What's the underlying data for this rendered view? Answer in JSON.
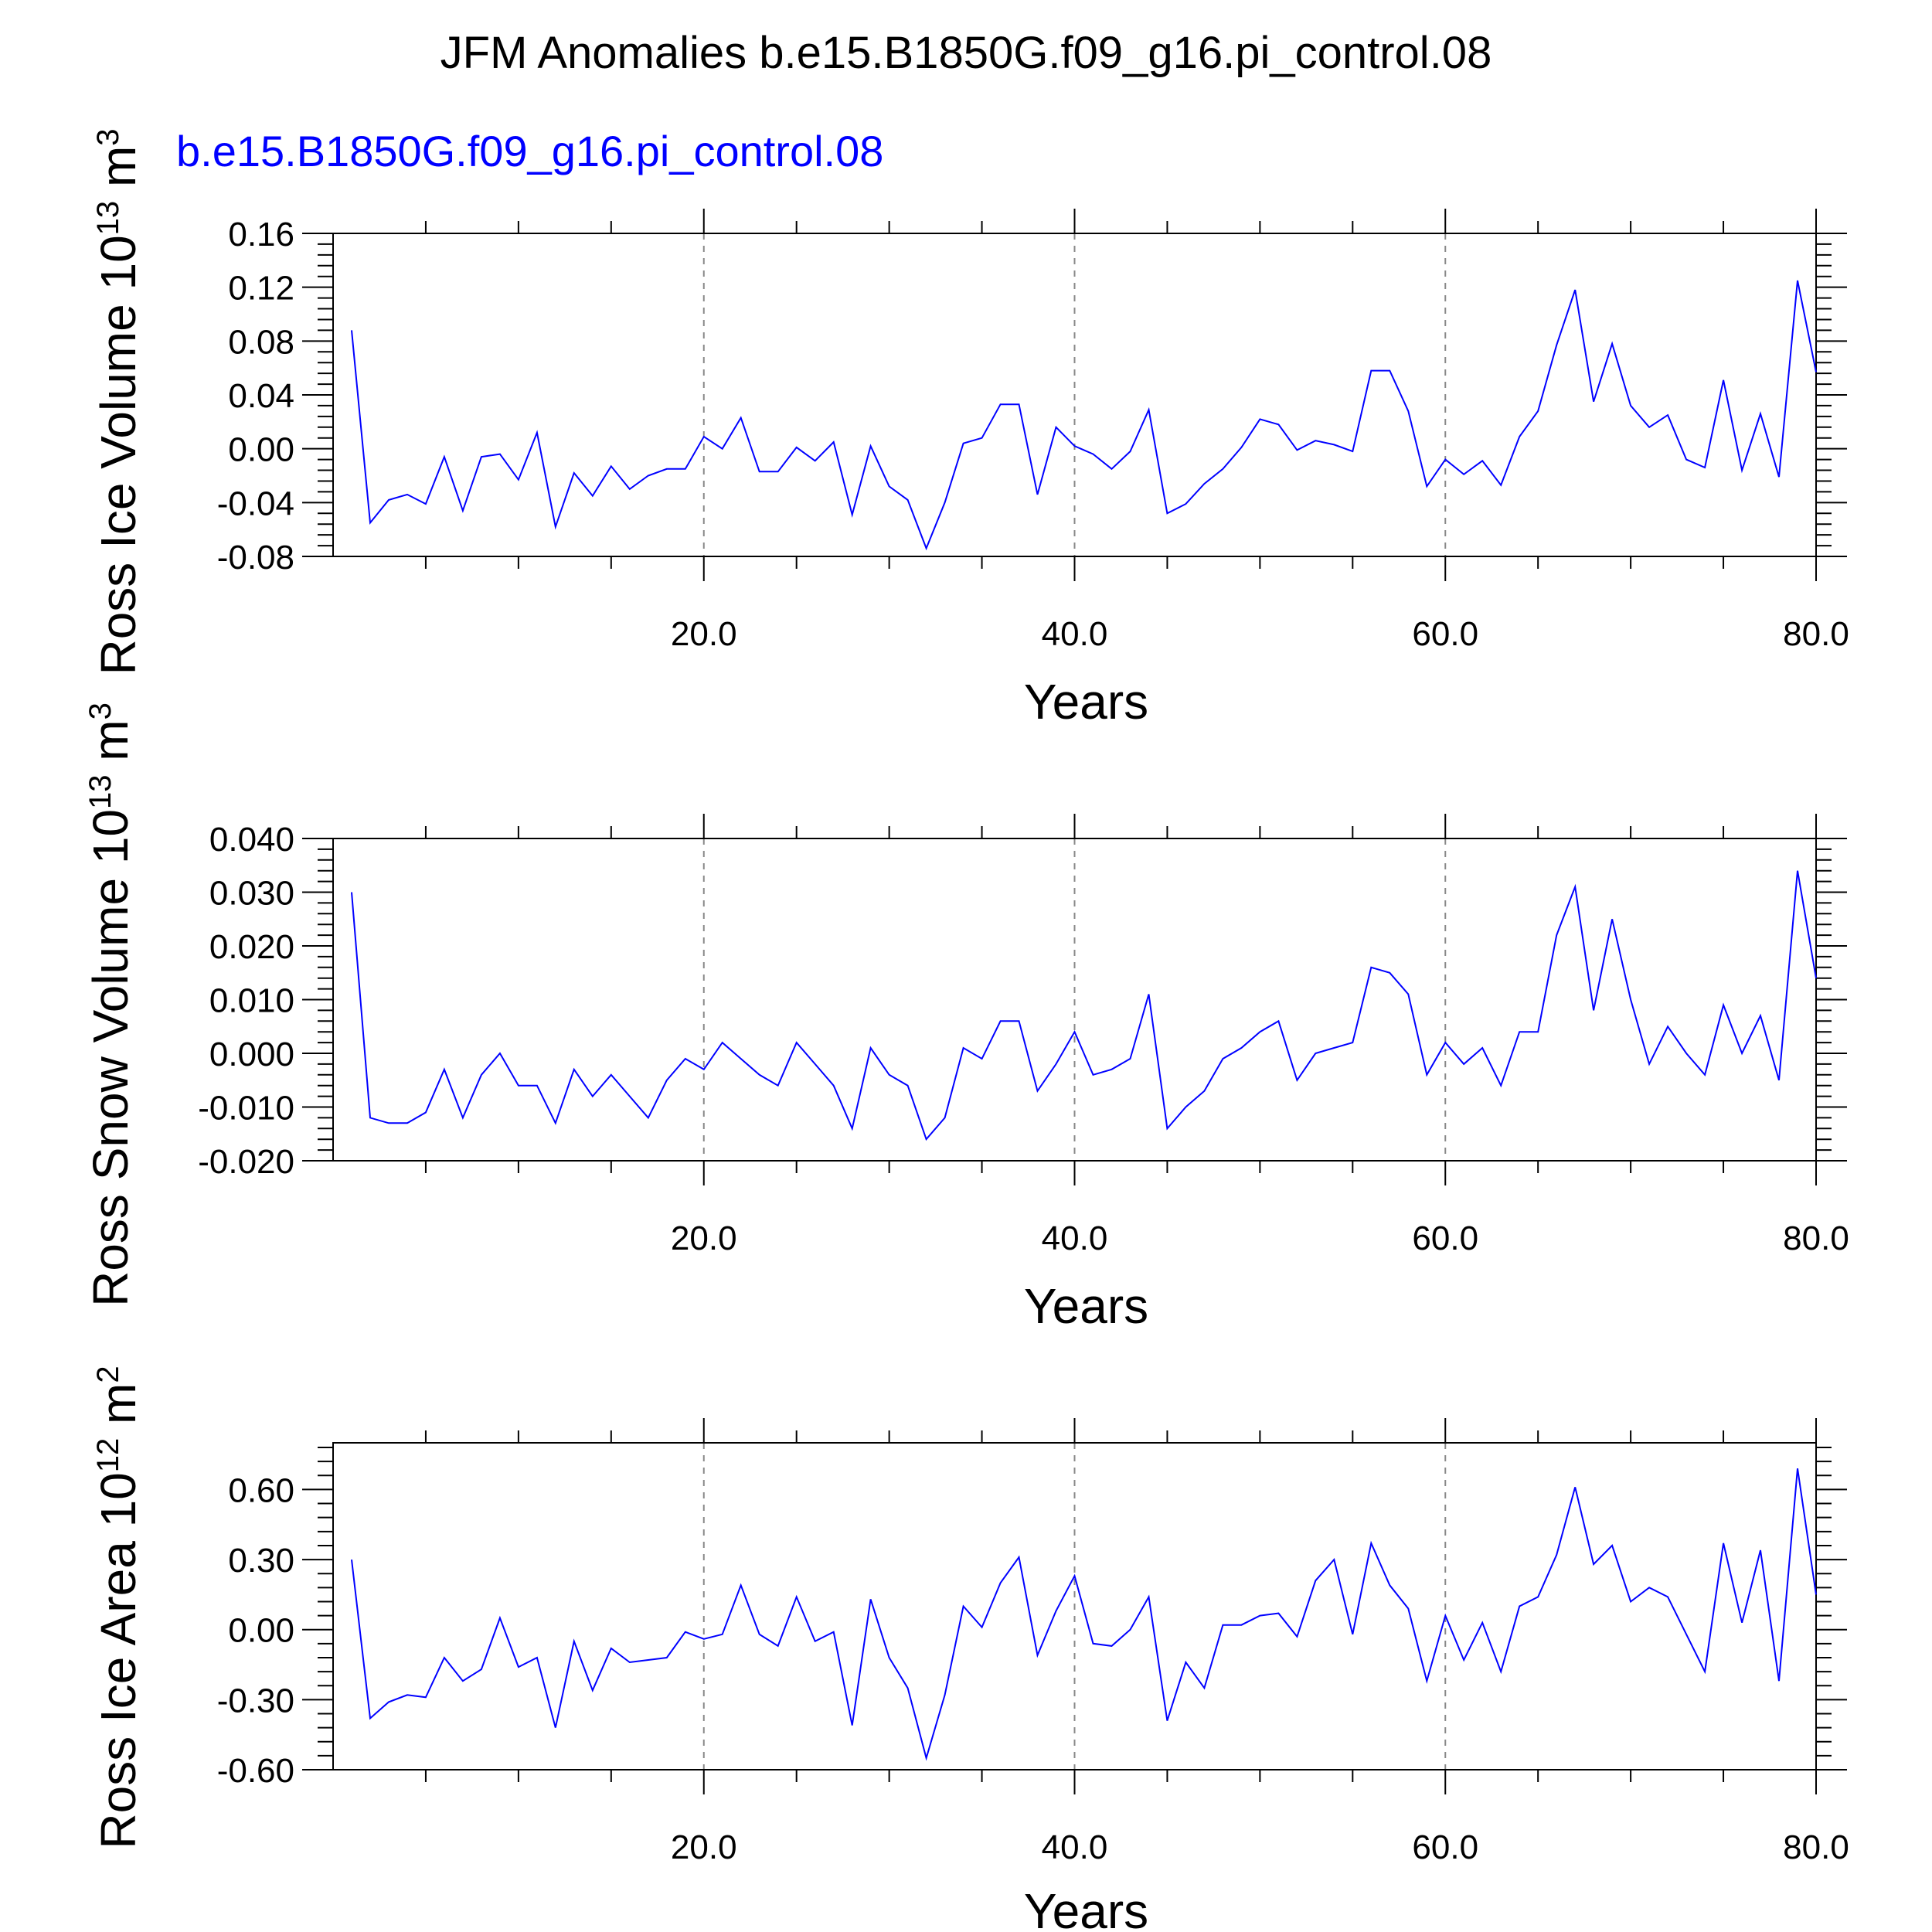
{
  "title": "JFM Anomalies b.e15.B1850G.f09_g16.pi_control.08",
  "subtitle": "b.e15.B1850G.f09_g16.pi_control.08",
  "colors": {
    "line": "#0000ff",
    "subtitle": "#0000ff",
    "grid": "#888888",
    "axis": "#000000"
  },
  "chart_data": [
    {
      "type": "line",
      "ylabel": {
        "main": "Ross Ice Volume 10",
        "exp": "13",
        "unit": " m",
        "unit_exp": "3"
      },
      "xlabel": "Years",
      "xlim": [
        0,
        80
      ],
      "ylim": [
        -0.08,
        0.16
      ],
      "x_ticks": [
        "20.0",
        "40.0",
        "60.0",
        "80.0"
      ],
      "y_ticks": [
        "0.16",
        "0.12",
        "0.08",
        "0.04",
        "0.00",
        "-0.04",
        "-0.08"
      ],
      "grid": "vertical dashed at 20, 40, 60",
      "x": [
        1,
        2,
        3,
        4,
        5,
        6,
        7,
        8,
        9,
        10,
        11,
        12,
        13,
        14,
        15,
        16,
        17,
        18,
        19,
        20,
        21,
        22,
        23,
        24,
        25,
        26,
        27,
        28,
        29,
        30,
        31,
        32,
        33,
        34,
        35,
        36,
        37,
        38,
        39,
        40,
        41,
        42,
        43,
        44,
        45,
        46,
        47,
        48,
        49,
        50,
        51,
        52,
        53,
        54,
        55,
        56,
        57,
        58,
        59,
        60,
        61,
        62,
        63,
        64,
        65,
        66,
        67,
        68,
        69,
        70,
        71,
        72,
        73,
        74,
        75,
        76,
        77,
        78,
        79,
        80
      ],
      "values": [
        0.088,
        -0.055,
        -0.038,
        -0.034,
        -0.041,
        -0.006,
        -0.046,
        -0.006,
        -0.004,
        -0.023,
        0.012,
        -0.058,
        -0.018,
        -0.035,
        -0.013,
        -0.03,
        -0.02,
        -0.015,
        -0.015,
        0.009,
        0.0,
        0.023,
        -0.017,
        -0.017,
        0.001,
        -0.009,
        0.005,
        -0.049,
        0.002,
        -0.028,
        -0.038,
        -0.074,
        -0.04,
        0.004,
        0.008,
        0.033,
        0.033,
        -0.034,
        0.016,
        0.002,
        -0.004,
        -0.015,
        -0.002,
        0.029,
        -0.048,
        -0.041,
        -0.026,
        -0.015,
        0.001,
        0.022,
        0.018,
        -0.001,
        0.006,
        0.003,
        -0.002,
        0.058,
        0.058,
        0.028,
        -0.028,
        -0.008,
        -0.019,
        -0.009,
        -0.027,
        0.009,
        0.028,
        0.077,
        0.118,
        0.035,
        0.078,
        0.032,
        0.016,
        0.025,
        -0.008,
        -0.014,
        0.051,
        -0.016,
        0.026,
        -0.021,
        0.125,
        0.057
      ]
    },
    {
      "type": "line",
      "ylabel": {
        "main": "Ross Snow Volume 10",
        "exp": "13",
        "unit": " m",
        "unit_exp": "3"
      },
      "xlabel": "Years",
      "xlim": [
        0,
        80
      ],
      "ylim": [
        -0.02,
        0.04
      ],
      "x_ticks": [
        "20.0",
        "40.0",
        "60.0",
        "80.0"
      ],
      "y_ticks": [
        "0.040",
        "0.030",
        "0.020",
        "0.010",
        "0.000",
        "-0.010",
        "-0.020"
      ],
      "grid": "vertical dashed at 20, 40, 60",
      "x": [
        1,
        2,
        3,
        4,
        5,
        6,
        7,
        8,
        9,
        10,
        11,
        12,
        13,
        14,
        15,
        16,
        17,
        18,
        19,
        20,
        21,
        22,
        23,
        24,
        25,
        26,
        27,
        28,
        29,
        30,
        31,
        32,
        33,
        34,
        35,
        36,
        37,
        38,
        39,
        40,
        41,
        42,
        43,
        44,
        45,
        46,
        47,
        48,
        49,
        50,
        51,
        52,
        53,
        54,
        55,
        56,
        57,
        58,
        59,
        60,
        61,
        62,
        63,
        64,
        65,
        66,
        67,
        68,
        69,
        70,
        71,
        72,
        73,
        74,
        75,
        76,
        77,
        78,
        79,
        80
      ],
      "values": [
        0.03,
        -0.012,
        -0.013,
        -0.013,
        -0.011,
        -0.003,
        -0.012,
        -0.004,
        0.0,
        -0.006,
        -0.006,
        -0.013,
        -0.003,
        -0.008,
        -0.004,
        -0.008,
        -0.012,
        -0.005,
        -0.001,
        -0.003,
        0.002,
        -0.001,
        -0.004,
        -0.006,
        0.002,
        -0.002,
        -0.006,
        -0.014,
        0.001,
        -0.004,
        -0.006,
        -0.016,
        -0.012,
        0.001,
        -0.001,
        0.006,
        0.006,
        -0.007,
        -0.002,
        0.004,
        -0.004,
        -0.003,
        -0.001,
        0.011,
        -0.014,
        -0.01,
        -0.007,
        -0.001,
        0.001,
        0.004,
        0.006,
        -0.005,
        0.0,
        0.001,
        0.002,
        0.016,
        0.015,
        0.011,
        -0.004,
        0.002,
        -0.002,
        0.001,
        -0.006,
        0.004,
        0.004,
        0.022,
        0.031,
        0.008,
        0.025,
        0.01,
        -0.002,
        0.005,
        0.0,
        -0.004,
        0.009,
        0.0,
        0.007,
        -0.005,
        0.034,
        0.014
      ]
    },
    {
      "type": "line",
      "ylabel": {
        "main": "Ross Ice Area 10",
        "exp": "12",
        "unit": " m",
        "unit_exp": "2"
      },
      "xlabel": "Years",
      "xlim": [
        0,
        80
      ],
      "ylim": [
        -0.6,
        0.8
      ],
      "x_ticks": [
        "20.0",
        "40.0",
        "60.0",
        "80.0"
      ],
      "y_ticks": [
        "0.60",
        "0.30",
        "0.00",
        "-0.30",
        "-0.60"
      ],
      "grid": "vertical dashed at 20, 40, 60",
      "x": [
        1,
        2,
        3,
        4,
        5,
        6,
        7,
        8,
        9,
        10,
        11,
        12,
        13,
        14,
        15,
        16,
        17,
        18,
        19,
        20,
        21,
        22,
        23,
        24,
        25,
        26,
        27,
        28,
        29,
        30,
        31,
        32,
        33,
        34,
        35,
        36,
        37,
        38,
        39,
        40,
        41,
        42,
        43,
        44,
        45,
        46,
        47,
        48,
        49,
        50,
        51,
        52,
        53,
        54,
        55,
        56,
        57,
        58,
        59,
        60,
        61,
        62,
        63,
        64,
        65,
        66,
        67,
        68,
        69,
        70,
        71,
        72,
        73,
        74,
        75,
        76,
        77,
        78,
        79,
        80
      ],
      "values": [
        0.3,
        -0.38,
        -0.31,
        -0.28,
        -0.29,
        -0.12,
        -0.22,
        -0.17,
        0.05,
        -0.16,
        -0.12,
        -0.42,
        -0.05,
        -0.26,
        -0.08,
        -0.14,
        -0.13,
        -0.12,
        -0.01,
        -0.04,
        -0.02,
        0.19,
        -0.02,
        -0.07,
        0.14,
        -0.05,
        -0.01,
        -0.41,
        0.13,
        -0.12,
        -0.25,
        -0.55,
        -0.28,
        0.1,
        0.01,
        0.2,
        0.31,
        -0.11,
        0.08,
        0.23,
        -0.06,
        -0.07,
        0.0,
        0.14,
        -0.39,
        -0.14,
        -0.25,
        0.02,
        0.02,
        0.06,
        0.07,
        -0.03,
        0.21,
        0.3,
        -0.02,
        0.37,
        0.19,
        0.09,
        -0.22,
        0.06,
        -0.13,
        0.03,
        -0.18,
        0.1,
        0.14,
        0.32,
        0.61,
        0.28,
        0.36,
        0.12,
        0.18,
        0.14,
        -0.02,
        -0.18,
        0.37,
        0.03,
        0.34,
        -0.22,
        0.69,
        0.15
      ]
    }
  ]
}
